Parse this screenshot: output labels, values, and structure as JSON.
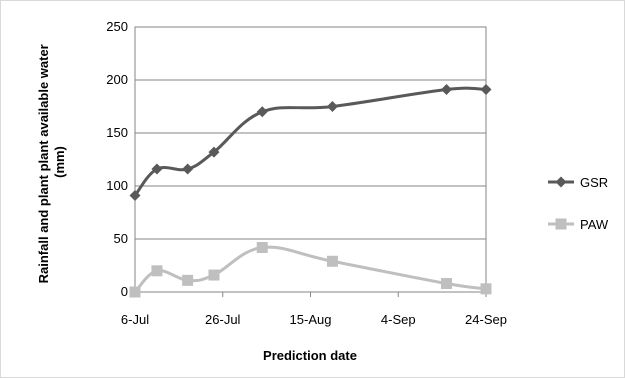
{
  "chart_data": {
    "type": "line",
    "title": "",
    "xlabel": "Prediction date",
    "ylabel": "Rainfall and plant plant available  water (mm)",
    "ylabel_lines": [
      "Rainfall and plant plant available  water",
      "(mm)"
    ],
    "x_ticks": [
      "6-Jul",
      "26-Jul",
      "15-Aug",
      "4-Sep",
      "24-Sep"
    ],
    "x_tick_days": [
      0,
      20,
      40,
      60,
      80
    ],
    "xlim": [
      0,
      80
    ],
    "ylim": [
      0,
      250
    ],
    "y_ticks": [
      0,
      50,
      100,
      150,
      200,
      250
    ],
    "grid": true,
    "legend_position": "right",
    "series": [
      {
        "name": "GSR",
        "color": "#595959",
        "marker": "diamond",
        "x": [
          "6-Jul",
          "11-Jul",
          "18-Jul",
          "24-Jul",
          "4-Aug",
          "20-Aug",
          "15-Sep",
          "24-Sep"
        ],
        "x_days": [
          0,
          5,
          12,
          18,
          29,
          45,
          71,
          80
        ],
        "values": [
          91,
          116,
          116,
          132,
          170,
          175,
          191,
          191
        ]
      },
      {
        "name": "PAW",
        "color": "#bfbfbf",
        "marker": "square",
        "x": [
          "6-Jul",
          "11-Jul",
          "18-Jul",
          "24-Jul",
          "4-Aug",
          "20-Aug",
          "15-Sep",
          "24-Sep"
        ],
        "x_days": [
          0,
          5,
          12,
          18,
          29,
          45,
          71,
          80
        ],
        "values": [
          0,
          20,
          11,
          16,
          42,
          29,
          8,
          3
        ]
      }
    ]
  }
}
